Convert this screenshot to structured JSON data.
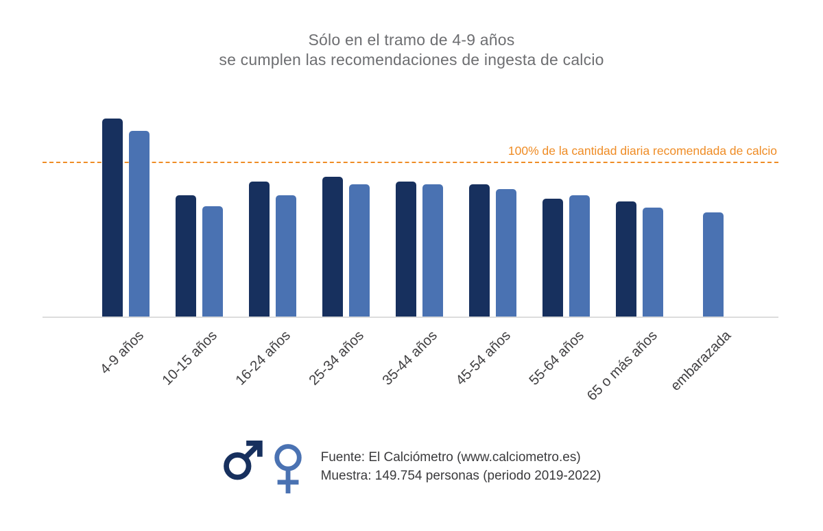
{
  "title": {
    "line1": "Sólo en el tramo de 4-9 años",
    "line2": "se cumplen las recomendaciones de ingesta de calcio"
  },
  "chart_data": {
    "type": "bar",
    "categories": [
      "4-9 años",
      "10-15 años",
      "16-24 años",
      "25-34 años",
      "35-44 años",
      "45-54 años",
      "55-64 años",
      "65 o más años",
      "embarazada"
    ],
    "series": [
      {
        "name": "male",
        "color": "#17305e",
        "values": [
          129,
          79,
          88,
          91,
          88,
          86,
          77,
          75,
          null
        ]
      },
      {
        "name": "female",
        "color": "#4a72b2",
        "values": [
          121,
          72,
          79,
          86,
          86,
          83,
          79,
          71,
          68
        ]
      }
    ],
    "ylim": [
      0,
      134
    ],
    "grid": false,
    "legend_position": "bottom-icons",
    "reference_line": {
      "value": 100,
      "label": "100% de la cantidad diaria recomendada de calcio",
      "color": "#ef8c25",
      "style": "dashed"
    }
  },
  "icons": {
    "male": "male-gender-symbol",
    "female": "female-gender-symbol"
  },
  "footer": {
    "source": "Fuente: El Calciómetro (www.calciometro.es)",
    "sample": "Muestra: 149.754 personas (periodo 2019-2022)"
  },
  "colors": {
    "male_bar": "#17305e",
    "female_bar": "#4a72b2",
    "reference": "#ef8c25",
    "title_text": "#6d6e71",
    "axis_text": "#414042",
    "baseline": "#dcdcdc"
  }
}
